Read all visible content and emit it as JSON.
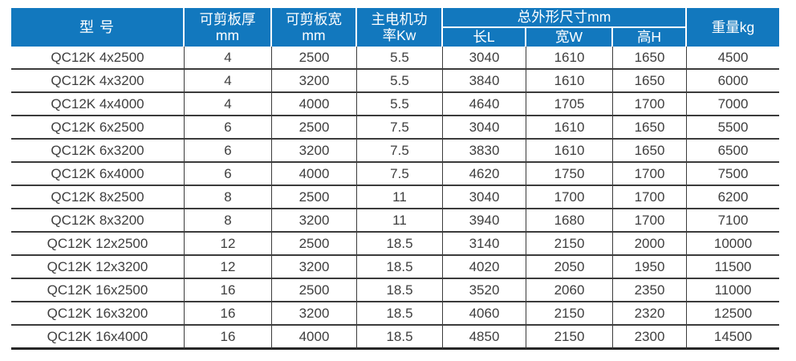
{
  "accent_color": "#1278BE",
  "text_color": "#3e3e3e",
  "border_color": "#3b3b3b",
  "table": {
    "headers": {
      "model": "型 号",
      "thickness": "可剪板厚\nmm",
      "cut_width": "可剪板宽\nmm",
      "motor_power": "主电机功\n率Kw",
      "dimensions_group": "总外形尺寸mm",
      "length": "长L",
      "width": "宽W",
      "height": "高H",
      "weight": "重量kg"
    },
    "col_names": [
      "model-cell",
      "thickness-cell",
      "cut-width-cell",
      "motor-power-cell",
      "length-cell",
      "width-cell",
      "height-cell",
      "weight-cell"
    ],
    "rows": [
      [
        "QC12K 4x2500",
        "4",
        "2500",
        "5.5",
        "3040",
        "1610",
        "1650",
        "4500"
      ],
      [
        "QC12K 4x3200",
        "4",
        "3200",
        "5.5",
        "3840",
        "1610",
        "1650",
        "6000"
      ],
      [
        "QC12K 4x4000",
        "4",
        "4000",
        "5.5",
        "4640",
        "1705",
        "1700",
        "7000"
      ],
      [
        "QC12K 6x2500",
        "6",
        "2500",
        "7.5",
        "3040",
        "1610",
        "1650",
        "5500"
      ],
      [
        "QC12K 6x3200",
        "6",
        "3200",
        "7.5",
        "3830",
        "1610",
        "1650",
        "6500"
      ],
      [
        "QC12K 6x4000",
        "6",
        "4000",
        "7.5",
        "4620",
        "1750",
        "1700",
        "7500"
      ],
      [
        "QC12K 8x2500",
        "8",
        "2500",
        "11",
        "3040",
        "1700",
        "1700",
        "6200"
      ],
      [
        "QC12K 8x3200",
        "8",
        "3200",
        "11",
        "3940",
        "1680",
        "1700",
        "7100"
      ],
      [
        "QC12K 12x2500",
        "12",
        "2500",
        "18.5",
        "3140",
        "2150",
        "2000",
        "10000"
      ],
      [
        "QC12K 12x3200",
        "12",
        "3200",
        "18.5",
        "4020",
        "2050",
        "1950",
        "11500"
      ],
      [
        "QC12K 16x2500",
        "16",
        "2500",
        "18.5",
        "3520",
        "2060",
        "2350",
        "11000"
      ],
      [
        "QC12K 16x3200",
        "16",
        "3200",
        "18.5",
        "4060",
        "2150",
        "2320",
        "12500"
      ],
      [
        "QC12K 16x4000",
        "16",
        "4000",
        "18.5",
        "4850",
        "2150",
        "2300",
        "14500"
      ]
    ]
  }
}
